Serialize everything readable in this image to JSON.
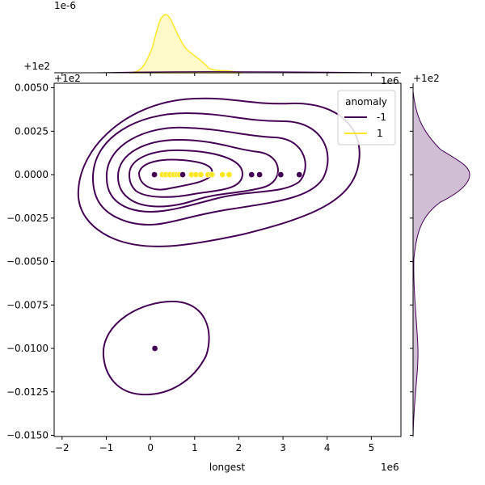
{
  "chart_data": {
    "type": "scatter",
    "subtype": "jointplot-kde",
    "xlabel": "longest",
    "ylabel": "",
    "x_offset_label": "1e6",
    "y_offset_label": "+1e2",
    "top_marginal_scale_label": "1e-6",
    "top_marginal_offset_label": "+1e2",
    "top_marginal_x_offset_label": "1e6",
    "right_marginal_offset_label": "+1e2",
    "xlim": [
      -2.18,
      5.67
    ],
    "ylim": [
      -0.01507,
      0.00526
    ],
    "xticks": [
      -2,
      -1,
      0,
      1,
      2,
      3,
      4,
      5
    ],
    "xtick_labels": [
      "−2",
      "−1",
      "0",
      "1",
      "2",
      "3",
      "4",
      "5"
    ],
    "yticks": [
      0.005,
      0.0025,
      0,
      -0.0025,
      -0.005,
      -0.0075,
      -0.01,
      -0.0125,
      -0.015
    ],
    "ytick_labels": [
      "0.0050",
      "0.0025",
      "0.0000",
      "−0.0025",
      "−0.0050",
      "−0.0075",
      "−0.0100",
      "−0.0125",
      "−0.0150"
    ],
    "legend": {
      "title": "anomaly",
      "placement": "top-right",
      "entries": [
        {
          "label": "-1",
          "color": "#440154"
        },
        {
          "label": "1",
          "color": "#fde725"
        }
      ]
    },
    "series": [
      {
        "name": "-1",
        "color": "#440154",
        "x": [
          0.09,
          0.73,
          2.29,
          2.47,
          2.95,
          3.37,
          0.1
        ],
        "y": [
          0,
          0,
          0,
          0,
          0,
          0,
          -0.01
        ]
      },
      {
        "name": "1",
        "color": "#fde725",
        "x": [
          0.27,
          0.35,
          0.44,
          0.53,
          0.6,
          0.66,
          0.93,
          1.03,
          1.14,
          1.3,
          1.39,
          1.63,
          1.78
        ],
        "y": [
          0,
          0,
          0,
          0,
          0,
          0,
          0,
          0,
          0,
          0,
          0,
          0,
          0
        ]
      }
    ]
  }
}
